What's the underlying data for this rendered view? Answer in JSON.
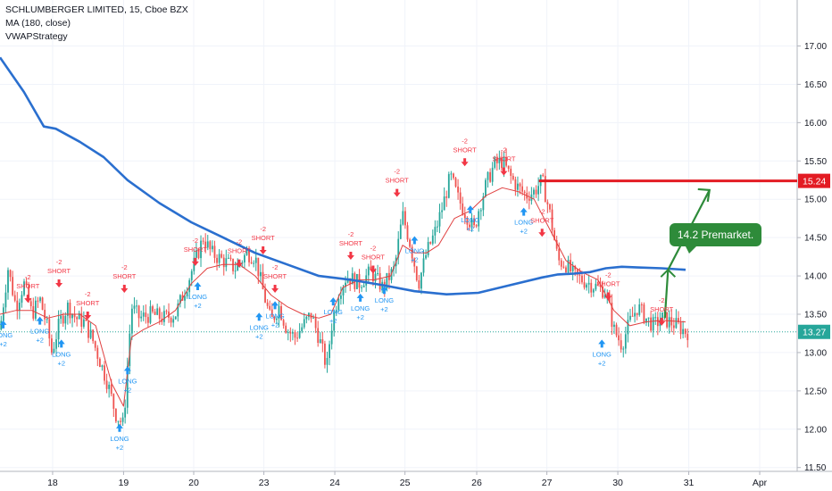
{
  "legend": {
    "symbol": "SCHLUMBERGER LIMITED, 15, Cboe BZX",
    "ma": "MA (180, close)",
    "strategy": "VWAPStrategy"
  },
  "colors": {
    "up": "#26a69a",
    "down": "#ef5350",
    "ma": "#2a6fcf",
    "vwap": "#e04040",
    "target": "#e31b23",
    "current": "#26a69a",
    "annotation": "#2e8b3a",
    "long": "#2196f3",
    "short": "#f23645"
  },
  "chart_data": {
    "type": "line",
    "y_ticks": [
      "17.00",
      "16.50",
      "16.00",
      "15.50",
      "15.00",
      "14.50",
      "14.00",
      "13.50",
      "13.00",
      "12.50",
      "12.00",
      "11.50"
    ],
    "ylim": [
      11.45,
      17.6
    ],
    "x_ticks": [
      {
        "label": "18",
        "t": 0.066
      },
      {
        "label": "19",
        "t": 0.155
      },
      {
        "label": "20",
        "t": 0.243
      },
      {
        "label": "23",
        "t": 0.331
      },
      {
        "label": "24",
        "t": 0.42
      },
      {
        "label": "25",
        "t": 0.508
      },
      {
        "label": "26",
        "t": 0.598
      },
      {
        "label": "27",
        "t": 0.686
      },
      {
        "label": "30",
        "t": 0.775
      },
      {
        "label": "31",
        "t": 0.864
      },
      {
        "label": "Apr",
        "t": 0.953
      }
    ],
    "price_labels": [
      {
        "name": "target-price",
        "value": "15.24",
        "y": 15.24
      },
      {
        "name": "current-price",
        "value": "13.27",
        "y": 13.27
      }
    ],
    "ma_series": [
      [
        0.0,
        16.85
      ],
      [
        0.03,
        16.4
      ],
      [
        0.055,
        15.95
      ],
      [
        0.07,
        15.92
      ],
      [
        0.1,
        15.75
      ],
      [
        0.13,
        15.55
      ],
      [
        0.16,
        15.25
      ],
      [
        0.2,
        14.95
      ],
      [
        0.24,
        14.7
      ],
      [
        0.28,
        14.5
      ],
      [
        0.32,
        14.3
      ],
      [
        0.36,
        14.15
      ],
      [
        0.4,
        14.0
      ],
      [
        0.44,
        13.95
      ],
      [
        0.48,
        13.88
      ],
      [
        0.52,
        13.8
      ],
      [
        0.56,
        13.76
      ],
      [
        0.6,
        13.78
      ],
      [
        0.64,
        13.88
      ],
      [
        0.68,
        13.98
      ],
      [
        0.7,
        14.02
      ],
      [
        0.72,
        14.03
      ],
      [
        0.74,
        14.05
      ],
      [
        0.76,
        14.1
      ],
      [
        0.78,
        14.12
      ],
      [
        0.8,
        14.11
      ],
      [
        0.83,
        14.1
      ],
      [
        0.86,
        14.08
      ]
    ],
    "price_path": [
      [
        0.0,
        13.3
      ],
      [
        0.01,
        14.1
      ],
      [
        0.02,
        13.6
      ],
      [
        0.03,
        13.9
      ],
      [
        0.04,
        13.5
      ],
      [
        0.05,
        13.7
      ],
      [
        0.06,
        13.3
      ],
      [
        0.065,
        13.0
      ],
      [
        0.075,
        13.4
      ],
      [
        0.085,
        13.6
      ],
      [
        0.095,
        13.45
      ],
      [
        0.105,
        13.4
      ],
      [
        0.115,
        13.2
      ],
      [
        0.125,
        12.9
      ],
      [
        0.135,
        12.6
      ],
      [
        0.145,
        12.2
      ],
      [
        0.155,
        12.05
      ],
      [
        0.16,
        12.85
      ],
      [
        0.165,
        13.6
      ],
      [
        0.175,
        13.45
      ],
      [
        0.19,
        13.5
      ],
      [
        0.205,
        13.45
      ],
      [
        0.22,
        13.5
      ],
      [
        0.235,
        13.9
      ],
      [
        0.245,
        14.2
      ],
      [
        0.255,
        14.5
      ],
      [
        0.265,
        14.3
      ],
      [
        0.28,
        14.2
      ],
      [
        0.295,
        14.1
      ],
      [
        0.31,
        14.3
      ],
      [
        0.32,
        14.25
      ],
      [
        0.33,
        13.8
      ],
      [
        0.34,
        13.4
      ],
      [
        0.35,
        13.6
      ],
      [
        0.36,
        13.3
      ],
      [
        0.37,
        13.2
      ],
      [
        0.38,
        13.35
      ],
      [
        0.39,
        13.5
      ],
      [
        0.4,
        13.2
      ],
      [
        0.41,
        12.8
      ],
      [
        0.415,
        13.3
      ],
      [
        0.425,
        13.8
      ],
      [
        0.435,
        14.0
      ],
      [
        0.45,
        13.9
      ],
      [
        0.465,
        14.05
      ],
      [
        0.48,
        13.85
      ],
      [
        0.495,
        14.1
      ],
      [
        0.505,
        14.8
      ],
      [
        0.515,
        14.4
      ],
      [
        0.525,
        13.9
      ],
      [
        0.535,
        14.3
      ],
      [
        0.545,
        14.55
      ],
      [
        0.555,
        14.9
      ],
      [
        0.565,
        15.3
      ],
      [
        0.575,
        15.0
      ],
      [
        0.585,
        14.8
      ],
      [
        0.595,
        14.6
      ],
      [
        0.6,
        14.85
      ],
      [
        0.61,
        15.2
      ],
      [
        0.62,
        15.45
      ],
      [
        0.63,
        15.5
      ],
      [
        0.64,
        15.3
      ],
      [
        0.65,
        15.15
      ],
      [
        0.66,
        15.05
      ],
      [
        0.67,
        15.1
      ],
      [
        0.68,
        15.25
      ],
      [
        0.69,
        14.8
      ],
      [
        0.7,
        14.2
      ],
      [
        0.71,
        14.15
      ],
      [
        0.72,
        14.0
      ],
      [
        0.73,
        13.95
      ],
      [
        0.74,
        13.9
      ],
      [
        0.75,
        13.85
      ],
      [
        0.76,
        13.8
      ],
      [
        0.77,
        13.3
      ],
      [
        0.78,
        13.1
      ],
      [
        0.79,
        13.4
      ],
      [
        0.8,
        13.6
      ],
      [
        0.81,
        13.45
      ],
      [
        0.82,
        13.35
      ],
      [
        0.83,
        13.45
      ],
      [
        0.84,
        13.4
      ],
      [
        0.85,
        13.35
      ],
      [
        0.86,
        13.27
      ]
    ],
    "vwap_series": [
      [
        0.0,
        13.5
      ],
      [
        0.02,
        13.55
      ],
      [
        0.04,
        13.55
      ],
      [
        0.06,
        13.45
      ],
      [
        0.08,
        13.5
      ],
      [
        0.1,
        13.5
      ],
      [
        0.12,
        13.35
      ],
      [
        0.14,
        12.6
      ],
      [
        0.155,
        12.3
      ],
      [
        0.165,
        13.2
      ],
      [
        0.18,
        13.3
      ],
      [
        0.2,
        13.4
      ],
      [
        0.22,
        13.55
      ],
      [
        0.24,
        13.9
      ],
      [
        0.26,
        14.1
      ],
      [
        0.28,
        14.15
      ],
      [
        0.3,
        14.15
      ],
      [
        0.32,
        14.0
      ],
      [
        0.34,
        13.75
      ],
      [
        0.36,
        13.6
      ],
      [
        0.38,
        13.5
      ],
      [
        0.4,
        13.45
      ],
      [
        0.415,
        13.5
      ],
      [
        0.43,
        13.85
      ],
      [
        0.45,
        13.95
      ],
      [
        0.47,
        13.95
      ],
      [
        0.49,
        14.0
      ],
      [
        0.505,
        14.4
      ],
      [
        0.52,
        14.3
      ],
      [
        0.535,
        14.3
      ],
      [
        0.55,
        14.4
      ],
      [
        0.57,
        14.75
      ],
      [
        0.59,
        14.85
      ],
      [
        0.61,
        15.05
      ],
      [
        0.63,
        15.15
      ],
      [
        0.65,
        15.1
      ],
      [
        0.67,
        15.0
      ],
      [
        0.69,
        14.6
      ],
      [
        0.71,
        14.2
      ],
      [
        0.73,
        14.05
      ],
      [
        0.75,
        13.95
      ],
      [
        0.77,
        13.55
      ],
      [
        0.79,
        13.35
      ],
      [
        0.81,
        13.4
      ],
      [
        0.83,
        13.42
      ],
      [
        0.86,
        13.4
      ]
    ],
    "annotations": {
      "target_line_value": 15.24,
      "premarket_text": "14.2 Premarket."
    },
    "signals": [
      {
        "kind": "long",
        "t": 0.004,
        "y": 13.35,
        "qty": "+2"
      },
      {
        "kind": "short",
        "t": 0.035,
        "y": 13.72,
        "qty": "-2"
      },
      {
        "kind": "long",
        "t": 0.05,
        "y": 13.4,
        "qty": "+2"
      },
      {
        "kind": "short",
        "t": 0.074,
        "y": 13.92,
        "qty": "-2"
      },
      {
        "kind": "long",
        "t": 0.077,
        "y": 13.1,
        "qty": "+2"
      },
      {
        "kind": "short",
        "t": 0.11,
        "y": 13.5,
        "qty": "-2"
      },
      {
        "kind": "short",
        "t": 0.156,
        "y": 13.85,
        "qty": "-2"
      },
      {
        "kind": "long",
        "t": 0.15,
        "y": 12.0,
        "qty": "+2"
      },
      {
        "kind": "long",
        "t": 0.16,
        "y": 12.75,
        "qty": "+2"
      },
      {
        "kind": "short",
        "t": 0.245,
        "y": 14.2,
        "qty": "-2"
      },
      {
        "kind": "long",
        "t": 0.248,
        "y": 13.85,
        "qty": "+2"
      },
      {
        "kind": "short",
        "t": 0.3,
        "y": 14.18,
        "qty": "-2"
      },
      {
        "kind": "short",
        "t": 0.33,
        "y": 14.35,
        "qty": "-2"
      },
      {
        "kind": "long",
        "t": 0.325,
        "y": 13.45,
        "qty": "+2"
      },
      {
        "kind": "short",
        "t": 0.345,
        "y": 13.85,
        "qty": "-2"
      },
      {
        "kind": "long",
        "t": 0.345,
        "y": 13.6,
        "qty": "+2"
      },
      {
        "kind": "long",
        "t": 0.418,
        "y": 13.65,
        "qty": "+2"
      },
      {
        "kind": "short",
        "t": 0.44,
        "y": 14.28,
        "qty": "-2"
      },
      {
        "kind": "short",
        "t": 0.468,
        "y": 14.1,
        "qty": "-2"
      },
      {
        "kind": "long",
        "t": 0.452,
        "y": 13.7,
        "qty": "+2"
      },
      {
        "kind": "long",
        "t": 0.482,
        "y": 13.8,
        "qty": "+2"
      },
      {
        "kind": "short",
        "t": 0.498,
        "y": 15.1,
        "qty": "-2"
      },
      {
        "kind": "long",
        "t": 0.52,
        "y": 14.45,
        "qty": "+2"
      },
      {
        "kind": "short",
        "t": 0.583,
        "y": 15.5,
        "qty": "-2"
      },
      {
        "kind": "long",
        "t": 0.59,
        "y": 14.85,
        "qty": "+2"
      },
      {
        "kind": "short",
        "t": 0.632,
        "y": 15.38,
        "qty": "-2"
      },
      {
        "kind": "long",
        "t": 0.657,
        "y": 14.82,
        "qty": "+2"
      },
      {
        "kind": "short",
        "t": 0.68,
        "y": 14.58,
        "qty": "-2"
      },
      {
        "kind": "short",
        "t": 0.763,
        "y": 13.75,
        "qty": "-2"
      },
      {
        "kind": "long",
        "t": 0.755,
        "y": 13.1,
        "qty": "+2"
      },
      {
        "kind": "short",
        "t": 0.83,
        "y": 13.42,
        "qty": "-2"
      }
    ]
  }
}
